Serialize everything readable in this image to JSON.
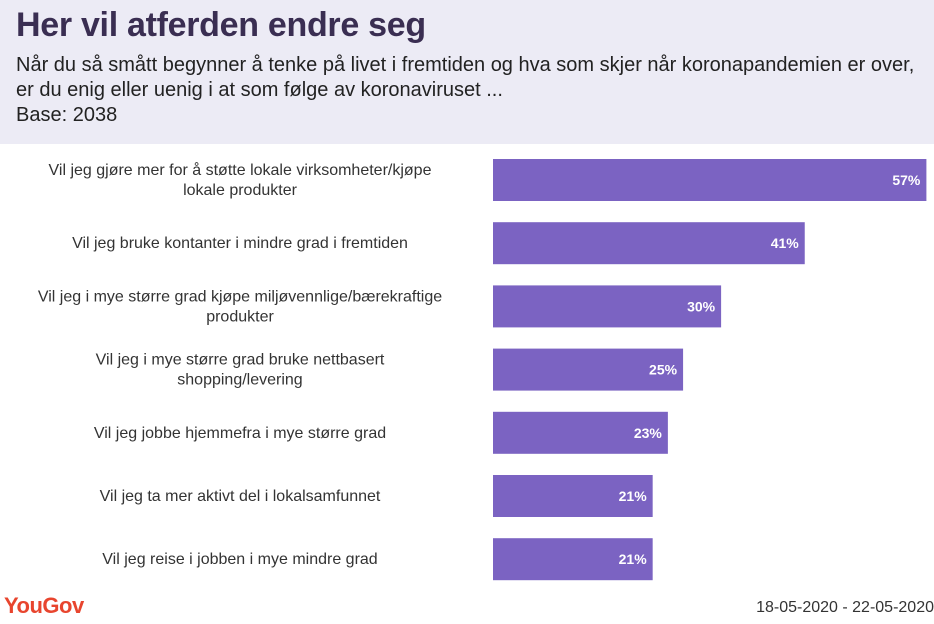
{
  "header": {
    "title": "Her vil atferden endre seg",
    "subtitle": "Når du så smått begynner å tenke på livet i fremtiden og hva som skjer når koronapandemien er over, er du enig eller uenig i at som følge av koronaviruset ...",
    "base": "Base: 2038"
  },
  "footer": {
    "logo": "YouGov",
    "dates": "18-05-2020 - 22-05-2020"
  },
  "colors": {
    "bar": "#7b63c2",
    "header_bg": "#ecebf5",
    "logo": "#e8452e"
  },
  "chart_data": {
    "type": "bar",
    "orientation": "horizontal",
    "categories": [
      [
        "Vil jeg gjøre mer for å støtte lokale virksomheter/kjøpe",
        "lokale produkter"
      ],
      [
        "Vil jeg bruke kontanter i mindre grad i fremtiden"
      ],
      [
        "Vil jeg i mye større grad kjøpe miljøvennlige/bærekraftige",
        "produkter"
      ],
      [
        "Vil jeg i mye større grad bruke nettbasert",
        "shopping/levering"
      ],
      [
        "Vil jeg jobbe hjemmefra i mye større grad"
      ],
      [
        "Vil jeg ta mer aktivt del i lokalsamfunnet"
      ],
      [
        "Vil jeg reise i jobben i mye mindre grad"
      ]
    ],
    "values": [
      57,
      41,
      30,
      25,
      23,
      21,
      21
    ],
    "value_labels": [
      "57%",
      "41%",
      "30%",
      "25%",
      "23%",
      "21%",
      "21%"
    ],
    "unit": "%",
    "xlim": [
      0,
      58
    ],
    "grid": false,
    "legend": "none"
  }
}
